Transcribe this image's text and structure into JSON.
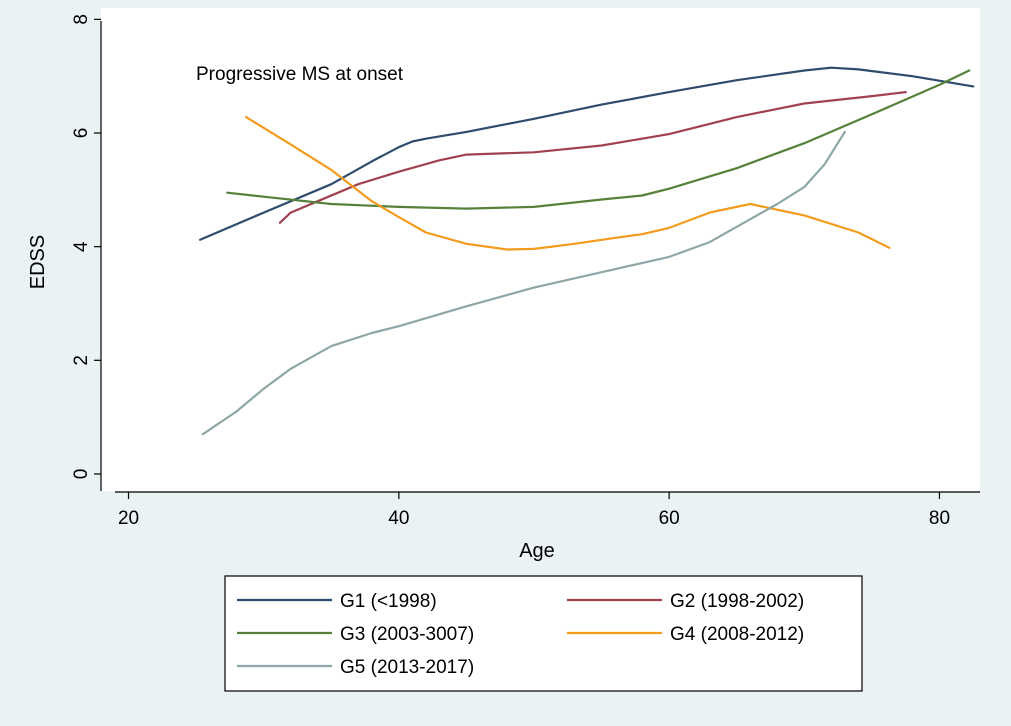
{
  "chart_data": {
    "type": "line",
    "annotation": "Progressive MS at onset",
    "xlabel": "Age",
    "ylabel": "EDSS",
    "xlim": [
      19,
      83
    ],
    "ylim": [
      -0.3,
      8.2
    ],
    "xticks": [
      20,
      40,
      60,
      80
    ],
    "yticks": [
      0,
      2,
      4,
      6,
      8
    ],
    "grid": true,
    "legend_position": "bottom",
    "series": [
      {
        "name": "G1 (<1998)",
        "color": "#2e4c6e",
        "x": [
          25.3,
          30,
          35,
          38,
          40,
          41,
          42,
          45,
          50,
          55,
          60,
          65,
          70,
          72,
          74,
          78,
          82.5
        ],
        "y": [
          4.12,
          4.6,
          5.1,
          5.5,
          5.75,
          5.85,
          5.9,
          6.02,
          6.25,
          6.5,
          6.72,
          6.93,
          7.1,
          7.15,
          7.12,
          7.0,
          6.82
        ]
      },
      {
        "name": "G2 (1998-2002)",
        "color": "#a0424f",
        "x": [
          31.2,
          32,
          34,
          37,
          40,
          43,
          45,
          50,
          55,
          60,
          65,
          70,
          75,
          77.5
        ],
        "y": [
          4.42,
          4.6,
          4.8,
          5.1,
          5.32,
          5.52,
          5.62,
          5.66,
          5.78,
          5.98,
          6.28,
          6.52,
          6.65,
          6.72
        ]
      },
      {
        "name": "G3 (2003-3007)",
        "color": "#55813a",
        "x": [
          27.3,
          30,
          35,
          40,
          45,
          50,
          55,
          58,
          60,
          65,
          70,
          75,
          80,
          82.2
        ],
        "y": [
          4.95,
          4.88,
          4.75,
          4.7,
          4.67,
          4.7,
          4.83,
          4.9,
          5.02,
          5.38,
          5.82,
          6.33,
          6.85,
          7.1
        ]
      },
      {
        "name": "G4 (2008-2012)",
        "color": "#f39b1c",
        "x": [
          28.7,
          32,
          35,
          38,
          40,
          42,
          45,
          48,
          50,
          53,
          55,
          58,
          60,
          63,
          66,
          70,
          74,
          76.3
        ],
        "y": [
          6.28,
          5.8,
          5.35,
          4.8,
          4.52,
          4.25,
          4.05,
          3.95,
          3.96,
          4.05,
          4.12,
          4.22,
          4.33,
          4.6,
          4.75,
          4.55,
          4.25,
          3.98
        ]
      },
      {
        "name": "G5 (2013-2017)",
        "color": "#8fa6a6",
        "x": [
          25.5,
          28,
          30,
          32,
          35,
          38,
          40,
          45,
          50,
          55,
          60,
          63,
          65,
          68,
          70,
          71.5,
          73
        ],
        "y": [
          0.7,
          1.1,
          1.5,
          1.85,
          2.25,
          2.48,
          2.6,
          2.95,
          3.28,
          3.55,
          3.82,
          4.08,
          4.35,
          4.75,
          5.05,
          5.45,
          6.02
        ]
      }
    ]
  }
}
